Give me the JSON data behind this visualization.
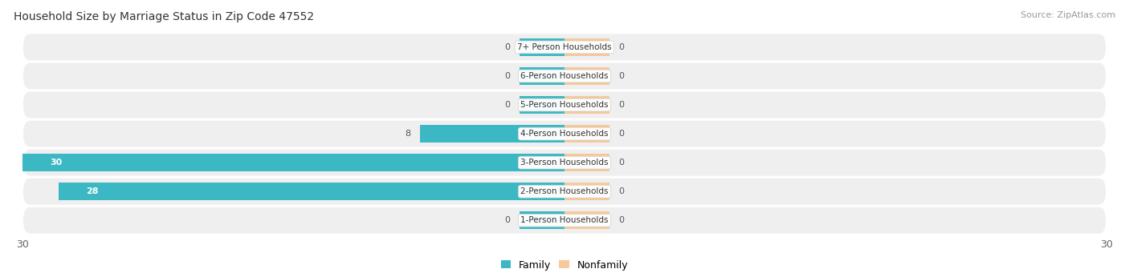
{
  "title": "Household Size by Marriage Status in Zip Code 47552",
  "source": "Source: ZipAtlas.com",
  "categories": [
    "7+ Person Households",
    "6-Person Households",
    "5-Person Households",
    "4-Person Households",
    "3-Person Households",
    "2-Person Households",
    "1-Person Households"
  ],
  "family_values": [
    0,
    0,
    0,
    8,
    30,
    28,
    0
  ],
  "nonfamily_values": [
    0,
    0,
    0,
    0,
    0,
    0,
    0
  ],
  "family_color": "#3bb8c3",
  "nonfamily_color": "#f5c99a",
  "row_bg_color": "#efefef",
  "row_bg_alt": "#e8e8e8",
  "xlim_left": -30,
  "xlim_right": 30,
  "label_color": "#444444",
  "title_fontsize": 10,
  "source_fontsize": 8,
  "tick_fontsize": 9,
  "cat_fontsize": 7.5,
  "val_fontsize": 8,
  "bar_height": 0.6,
  "stub_size": 2.5,
  "legend_labels": [
    "Family",
    "Nonfamily"
  ],
  "inside_label_threshold": 10
}
